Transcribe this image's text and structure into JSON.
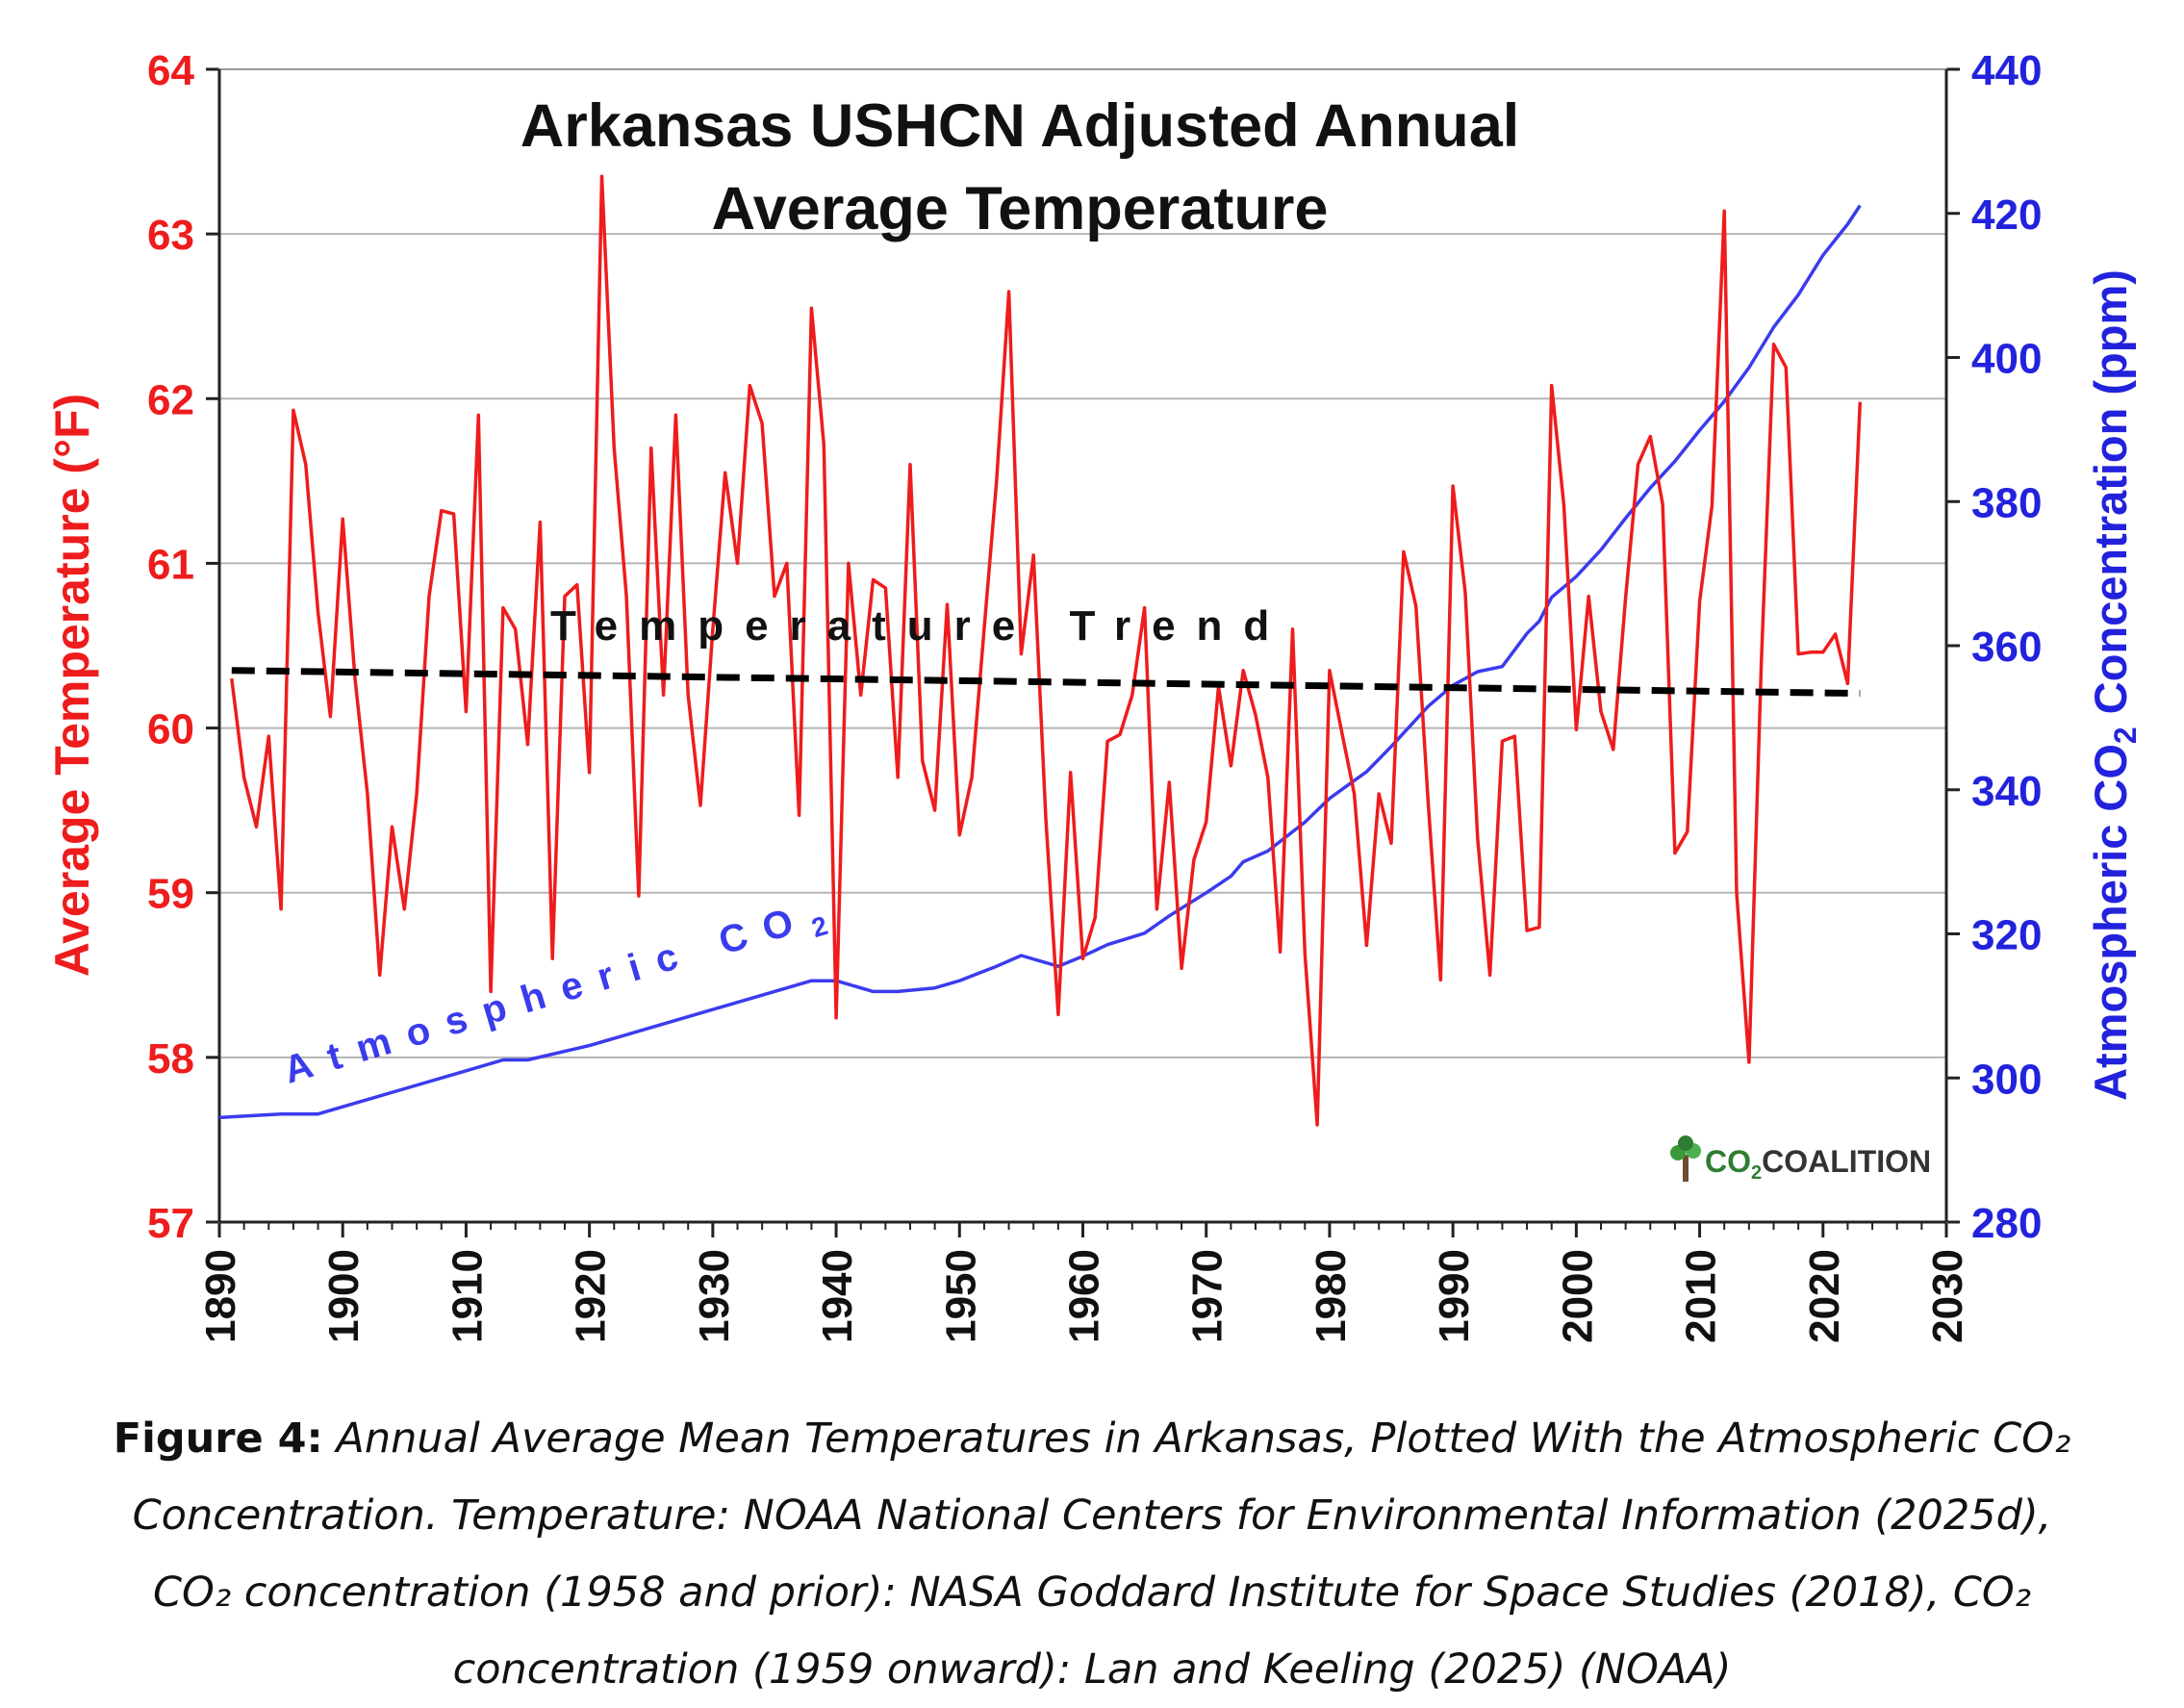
{
  "chart_data": {
    "type": "line",
    "title_lines": [
      "Arkansas USHCN Adjusted Annual",
      "Average Temperature"
    ],
    "ylabel_left": "Average Temperature (°F)",
    "ylabel_right_parts": [
      "Atmospheric CO",
      "2",
      " Concentration (ppm)"
    ],
    "xlim": [
      1890,
      2030
    ],
    "ylim_left": [
      57,
      64
    ],
    "ylim_right": [
      280,
      440
    ],
    "x_ticks": [
      "1890",
      "1900",
      "1910",
      "1920",
      "1930",
      "1940",
      "1950",
      "1960",
      "1970",
      "1980",
      "1990",
      "2000",
      "2010",
      "2020",
      "2030"
    ],
    "y_ticks_left": [
      "57",
      "58",
      "59",
      "60",
      "61",
      "62",
      "63",
      "64"
    ],
    "y_ticks_right": [
      "280",
      "300",
      "320",
      "340",
      "360",
      "380",
      "400",
      "420",
      "440"
    ],
    "grid": true,
    "colors": {
      "temperature": "#ee1c1c",
      "co2": "#3b3bee",
      "trend": "#000000",
      "left_axis": "#ee1c1c",
      "right_axis": "#2222dd",
      "logo_green": "#2e7d32"
    },
    "annotations": {
      "trend_label": "Temperature Trend",
      "co2_label_parts": [
        "Atmospheric CO",
        "2"
      ]
    },
    "logo_text": {
      "co": "CO",
      "sub": "2",
      "rest": "COALITION"
    },
    "series": [
      {
        "name": "Temperature",
        "axis": "left",
        "x": [
          1891,
          1892,
          1893,
          1894,
          1895,
          1896,
          1897,
          1898,
          1899,
          1900,
          1901,
          1902,
          1903,
          1904,
          1905,
          1906,
          1907,
          1908,
          1909,
          1910,
          1911,
          1912,
          1913,
          1914,
          1915,
          1916,
          1917,
          1918,
          1919,
          1920,
          1921,
          1922,
          1923,
          1924,
          1925,
          1926,
          1927,
          1928,
          1929,
          1930,
          1931,
          1932,
          1933,
          1934,
          1935,
          1936,
          1937,
          1938,
          1939,
          1940,
          1941,
          1942,
          1943,
          1944,
          1945,
          1946,
          1947,
          1948,
          1949,
          1950,
          1951,
          1952,
          1953,
          1954,
          1955,
          1956,
          1957,
          1958,
          1959,
          1960,
          1961,
          1962,
          1963,
          1964,
          1965,
          1966,
          1967,
          1968,
          1969,
          1970,
          1971,
          1972,
          1973,
          1974,
          1975,
          1976,
          1977,
          1978,
          1979,
          1980,
          1981,
          1982,
          1983,
          1984,
          1985,
          1986,
          1987,
          1988,
          1989,
          1990,
          1991,
          1992,
          1993,
          1994,
          1995,
          1996,
          1997,
          1998,
          1999,
          2000,
          2001,
          2002,
          2003,
          2004,
          2005,
          2006,
          2007,
          2008,
          2009,
          2010,
          2011,
          2012,
          2013,
          2014,
          2015,
          2016,
          2017,
          2018,
          2019,
          2020,
          2021,
          2022,
          2023
        ],
        "values": [
          60.3,
          59.7,
          59.4,
          59.95,
          58.9,
          61.93,
          61.6,
          60.7,
          60.07,
          61.27,
          60.3,
          59.6,
          58.5,
          59.4,
          58.9,
          59.6,
          60.8,
          61.32,
          61.3,
          60.1,
          61.9,
          58.4,
          60.73,
          60.6,
          59.9,
          61.25,
          58.6,
          60.8,
          60.87,
          59.73,
          63.35,
          61.7,
          60.8,
          58.98,
          61.7,
          60.2,
          61.9,
          60.2,
          59.53,
          60.6,
          61.55,
          61.0,
          62.08,
          61.85,
          60.8,
          61.0,
          59.47,
          62.55,
          61.72,
          58.24,
          61.0,
          60.2,
          60.9,
          60.85,
          59.7,
          61.6,
          59.8,
          59.5,
          60.75,
          59.35,
          59.7,
          60.6,
          61.5,
          62.65,
          60.45,
          61.05,
          59.45,
          58.26,
          59.73,
          58.6,
          58.85,
          59.92,
          59.96,
          60.2,
          60.73,
          58.9,
          59.67,
          58.54,
          59.2,
          59.43,
          60.25,
          59.77,
          60.35,
          60.08,
          59.7,
          58.64,
          60.6,
          58.63,
          57.59,
          60.35,
          59.97,
          59.6,
          58.68,
          59.6,
          59.3,
          61.07,
          60.74,
          59.54,
          58.47,
          61.47,
          60.82,
          59.33,
          58.5,
          59.92,
          59.95,
          58.77,
          58.79,
          62.08,
          61.35,
          59.99,
          60.8,
          60.1,
          59.87,
          60.79,
          61.6,
          61.77,
          61.36,
          59.24,
          59.37,
          60.77,
          61.35,
          63.14,
          59.0,
          57.97,
          60.4,
          62.33,
          62.19,
          60.45,
          60.46,
          60.46,
          60.57,
          60.27,
          61.98
        ]
      },
      {
        "name": "Temperature Trend",
        "axis": "left",
        "style": "dashed",
        "x": [
          1891,
          2023
        ],
        "values": [
          60.35,
          60.21
        ]
      },
      {
        "name": "Atmospheric CO2",
        "axis": "right",
        "x": [
          1890,
          1892,
          1895,
          1898,
          1900,
          1905,
          1910,
          1913,
          1915,
          1920,
          1925,
          1930,
          1935,
          1938,
          1940,
          1943,
          1945,
          1948,
          1950,
          1953,
          1955,
          1958,
          1960,
          1962,
          1965,
          1967,
          1970,
          1972,
          1973,
          1975,
          1978,
          1980,
          1983,
          1985,
          1988,
          1990,
          1992,
          1994,
          1996,
          1997,
          1998,
          2000,
          2002,
          2004,
          2006,
          2008,
          2010,
          2012,
          2014,
          2016,
          2018,
          2020,
          2022,
          2023
        ],
        "values": [
          294.5,
          294.7,
          295,
          295,
          296,
          298.5,
          301,
          302.5,
          302.5,
          304.5,
          307,
          309.5,
          312,
          313.5,
          313.5,
          312,
          312,
          312.5,
          313.5,
          315.5,
          317,
          315.5,
          316.9,
          318.5,
          320.1,
          322.5,
          325.7,
          328,
          330,
          331.5,
          335.5,
          338.8,
          342.5,
          346,
          351.6,
          354.5,
          356.4,
          357.1,
          361.7,
          363.4,
          366.7,
          369.6,
          373.3,
          377.7,
          381.9,
          385.6,
          389.9,
          393.9,
          398.6,
          404.2,
          408.7,
          414.2,
          418.5,
          421.1
        ]
      }
    ]
  },
  "caption": {
    "label": "Figure 4:",
    "line1": " Annual Average Mean Temperatures in Arkansas, Plotted With the Atmospheric CO₂",
    "line2": "Concentration. Temperature: NOAA National Centers for Environmental Information (2025d),",
    "line3": "CO₂ concentration (1958 and prior): NASA Goddard Institute for Space Studies (2018), CO₂",
    "line4": "concentration (1959 onward): Lan and Keeling (2025) (NOAA)"
  }
}
